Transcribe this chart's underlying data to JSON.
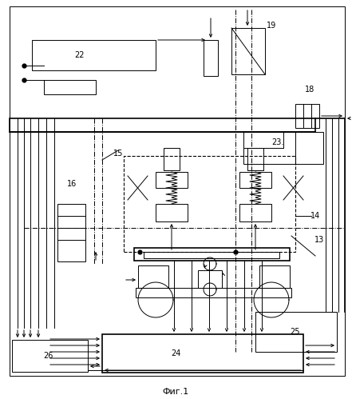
{
  "fig_width": 4.41,
  "fig_height": 4.99,
  "dpi": 100,
  "bg_color": "#ffffff",
  "title": "Фиг.1"
}
